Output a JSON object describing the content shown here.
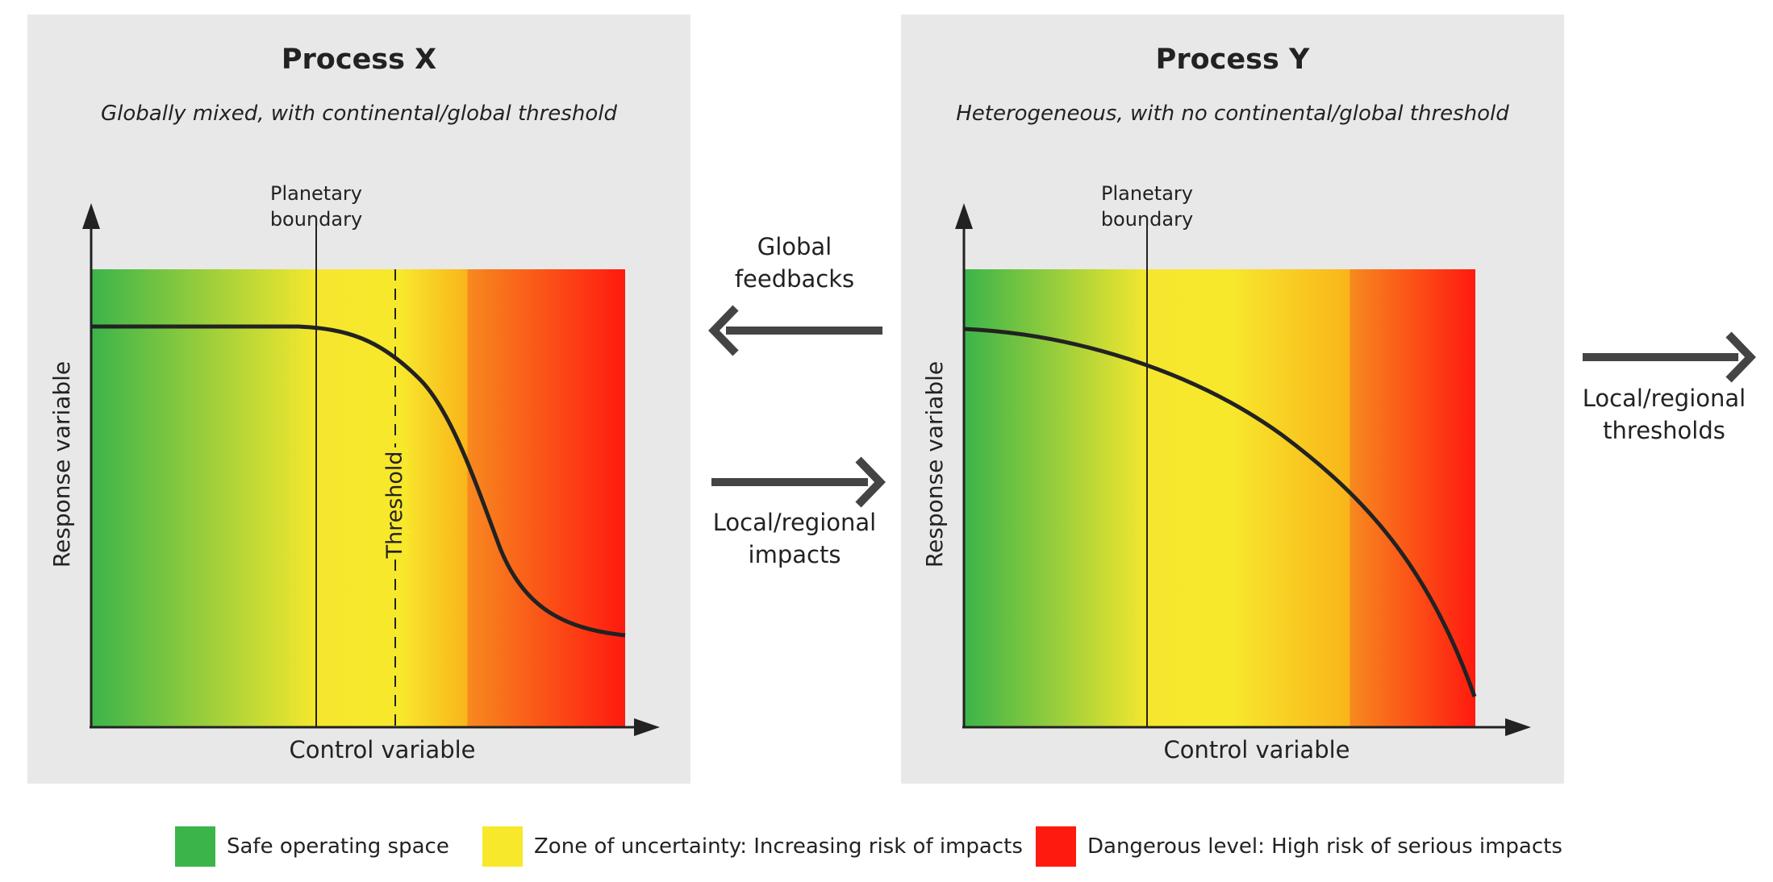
{
  "panels": [
    {
      "title": "Process X",
      "subtitle": "Globally mixed, with continental/global threshold",
      "y_label": "Response variable",
      "x_label": "Control variable",
      "boundary_label": [
        "Planetary",
        "boundary"
      ],
      "threshold_label": "Threshold"
    },
    {
      "title": "Process Y",
      "subtitle": "Heterogeneous, with no continental/global threshold",
      "y_label": "Response variable",
      "x_label": "Control variable",
      "boundary_label": [
        "Planetary",
        "boundary"
      ]
    }
  ],
  "arrows": {
    "global_feedbacks": [
      "Global",
      "feedbacks"
    ],
    "local_impacts": [
      "Local/regional",
      "impacts"
    ],
    "local_thresholds": [
      "Local/regional",
      "thresholds"
    ]
  },
  "legend": [
    {
      "label": "Safe operating space",
      "color": "#3bb44a"
    },
    {
      "label": "Zone of uncertainty: Increasing risk of impacts",
      "color": "#f8e82c"
    },
    {
      "label": "Dangerous level: High risk of serious impacts",
      "color": "#ff1a0f"
    }
  ],
  "colors": {
    "green": "#3bb44a",
    "yellow": "#f8e82c",
    "orange": "#f9a61c",
    "red": "#ff1a0f",
    "panel_bg": "#e8e8e8",
    "arrow": "#444444"
  }
}
